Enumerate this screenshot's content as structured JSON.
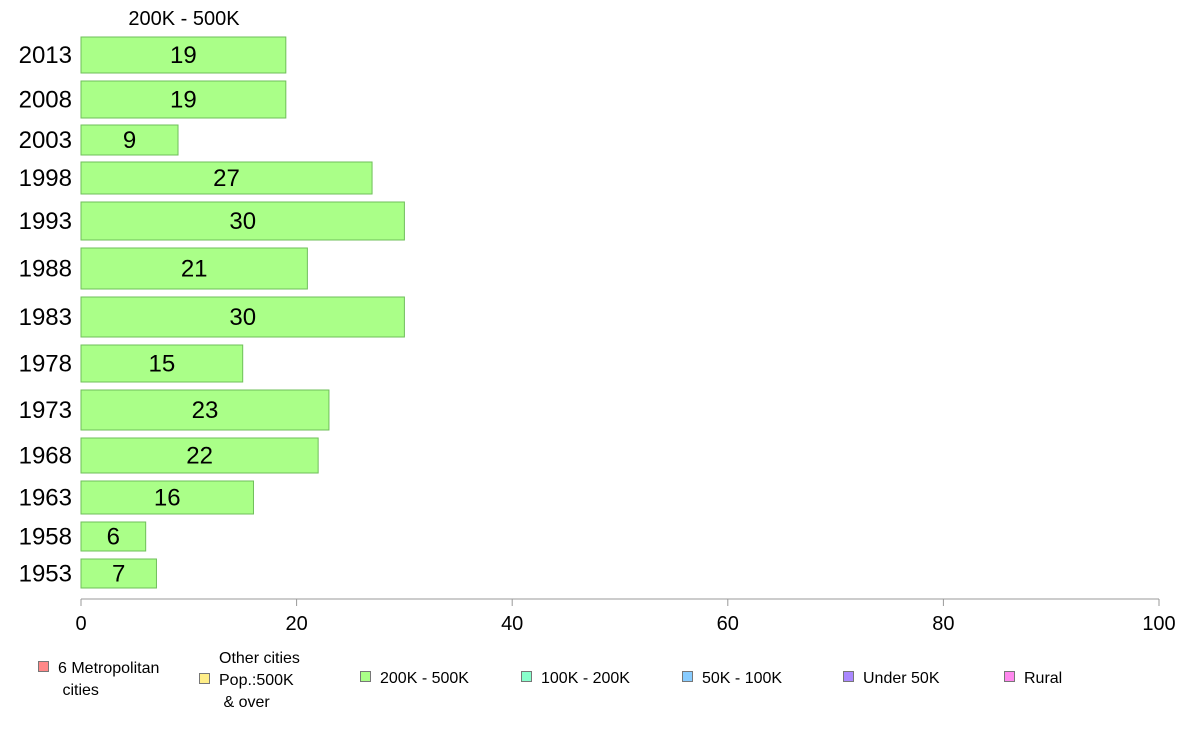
{
  "chart_data": {
    "type": "bar",
    "orientation": "horizontal",
    "title": "200K - 500K",
    "categories": [
      "2013",
      "2008",
      "2003",
      "1998",
      "1993",
      "1988",
      "1983",
      "1978",
      "1973",
      "1968",
      "1963",
      "1958",
      "1953"
    ],
    "series": [
      {
        "name": "200K - 500K",
        "values": [
          19,
          19,
          9,
          27,
          30,
          21,
          30,
          15,
          23,
          22,
          16,
          6,
          7
        ]
      }
    ],
    "xlim": [
      0,
      100
    ],
    "xticks": [
      0,
      20,
      40,
      60,
      80,
      100
    ],
    "grid": false,
    "bar_color": "#aaff88",
    "bar_stroke": "#6fbf5a",
    "axis_color": "#999999"
  },
  "legend": {
    "placement": "bottom",
    "items": [
      {
        "label": "6 Metropolitan\n cities",
        "color": "#ff8888"
      },
      {
        "label": "Other cities\nPop.:500K\n & over",
        "color": "#ffee88"
      },
      {
        "label": "200K - 500K",
        "color": "#aaff88"
      },
      {
        "label": "100K - 200K",
        "color": "#88ffcc"
      },
      {
        "label": "50K - 100K",
        "color": "#88ccff"
      },
      {
        "label": "Under 50K",
        "color": "#aa88ff"
      },
      {
        "label": "Rural",
        "color": "#ff88ee"
      }
    ]
  }
}
